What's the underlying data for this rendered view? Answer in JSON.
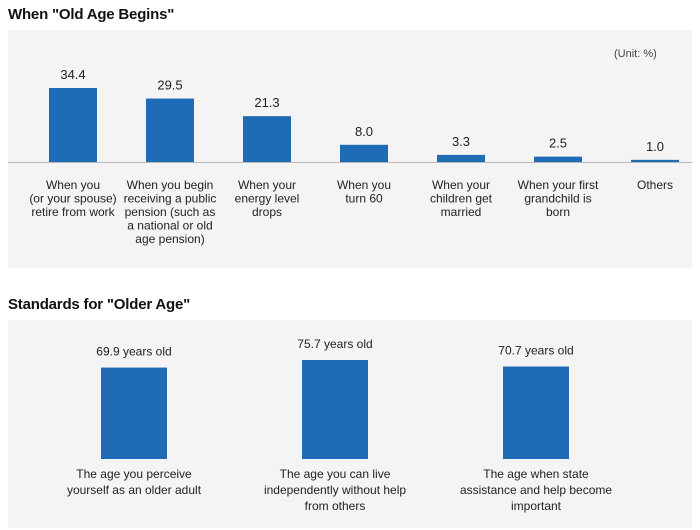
{
  "chart1_title": "When \"Old Age Begins\"",
  "chart2_title": "Standards for \"Older Age\"",
  "unit_note": "(Unit: %)",
  "chart_data": [
    {
      "type": "bar",
      "title": "When \"Old Age Begins\"",
      "unit": "(Unit: %)",
      "ylim": [
        0,
        34.4
      ],
      "categories": [
        [
          "When you",
          "(or your spouse)",
          "retire from work"
        ],
        [
          "When you begin",
          "receiving a public",
          "pension (such as",
          "a national or old",
          "age pension)"
        ],
        [
          "When your",
          "energy level",
          "drops"
        ],
        [
          "When you",
          "turn 60"
        ],
        [
          "When your",
          "children get",
          "married"
        ],
        [
          "When your first",
          "grandchild is",
          "born"
        ],
        [
          "Others"
        ]
      ],
      "values": [
        34.4,
        29.5,
        21.3,
        8.0,
        3.3,
        2.5,
        1.0
      ],
      "labels": [
        "34.4",
        "29.5",
        "21.3",
        "8.0",
        "3.3",
        "2.5",
        "1.0"
      ],
      "bar_color": "#1f6bb5"
    },
    {
      "type": "bar",
      "title": "Standards for \"Older Age\"",
      "ylim": [
        0,
        75.7
      ],
      "categories": [
        [
          "The age you perceive",
          "yourself as an older adult"
        ],
        [
          "The age you can live",
          "independently without help",
          "from others"
        ],
        [
          "The age when state",
          "assistance and help become",
          "important"
        ]
      ],
      "values": [
        69.9,
        75.7,
        70.7
      ],
      "labels": [
        "69.9 years old",
        "75.7 years old",
        "70.7 years old"
      ],
      "bar_color": "#1f6bb5"
    }
  ]
}
